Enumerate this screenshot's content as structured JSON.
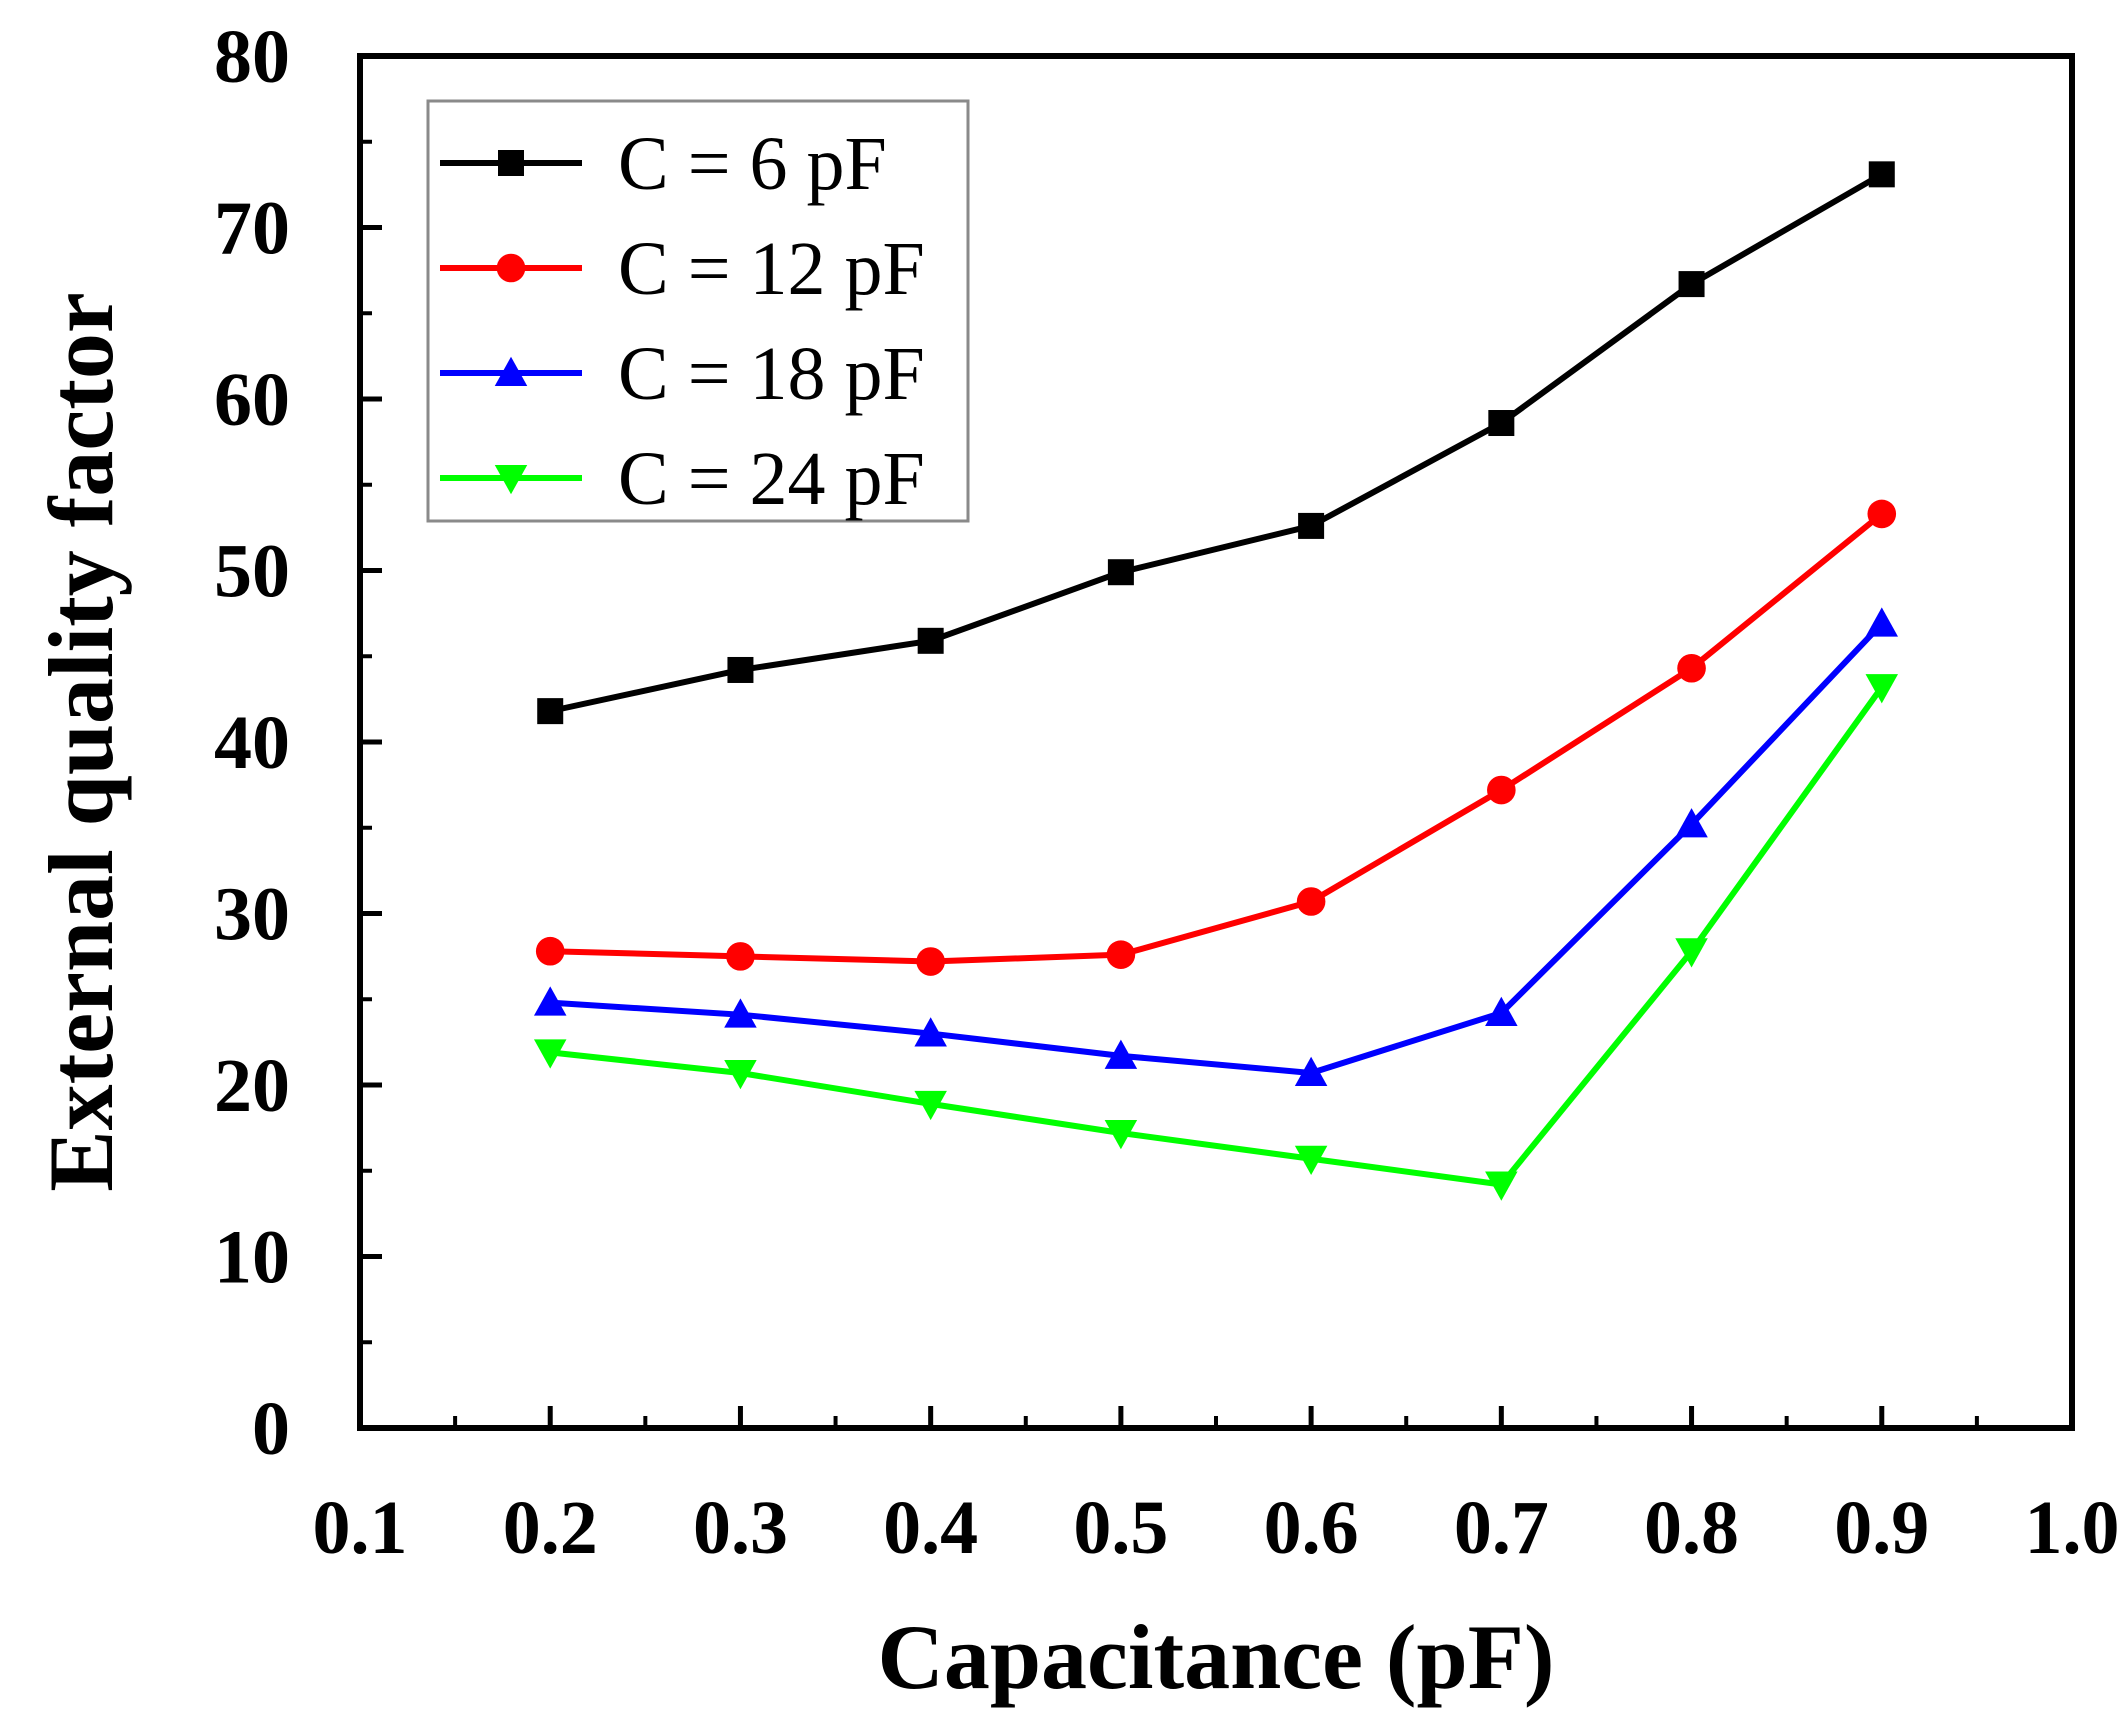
{
  "chart_data": {
    "type": "line",
    "title": "",
    "xlabel": "Capacitance (pF)",
    "ylabel": "External quality factor",
    "xlim": [
      0.1,
      1.0
    ],
    "ylim": [
      0,
      80
    ],
    "x": [
      0.2,
      0.3,
      0.4,
      0.5,
      0.6,
      0.7,
      0.8,
      0.9
    ],
    "xticks": [
      0.1,
      0.2,
      0.3,
      0.4,
      0.5,
      0.6,
      0.7,
      0.8,
      0.9,
      1.0
    ],
    "xtick_labels": [
      "0.1",
      "0.2",
      "0.3",
      "0.4",
      "0.5",
      "0.6",
      "0.7",
      "0.8",
      "0.9",
      "1.0"
    ],
    "yticks": [
      0,
      10,
      20,
      30,
      40,
      50,
      60,
      70,
      80
    ],
    "ytick_labels": [
      "0",
      "10",
      "20",
      "30",
      "40",
      "50",
      "60",
      "70",
      "80"
    ],
    "grid": false,
    "legend_position": "top-left",
    "series": [
      {
        "name": "C = 6 pF",
        "color": "#000000",
        "marker": "square",
        "values": [
          41.8,
          44.2,
          45.9,
          49.9,
          52.6,
          58.6,
          66.7,
          73.1
        ]
      },
      {
        "name": "C = 12 pF",
        "color": "#ff0000",
        "marker": "circle",
        "values": [
          27.8,
          27.5,
          27.2,
          27.6,
          30.7,
          37.2,
          44.3,
          53.3
        ]
      },
      {
        "name": "C = 18 pF",
        "color": "#0000ff",
        "marker": "triangle-up",
        "values": [
          24.8,
          24.1,
          23.0,
          21.7,
          20.7,
          24.2,
          35.2,
          46.9
        ]
      },
      {
        "name": "C = 24 pF",
        "color": "#00ff00",
        "marker": "triangle-down",
        "values": [
          21.9,
          20.7,
          18.9,
          17.2,
          15.7,
          14.2,
          27.8,
          43.2
        ]
      }
    ]
  }
}
